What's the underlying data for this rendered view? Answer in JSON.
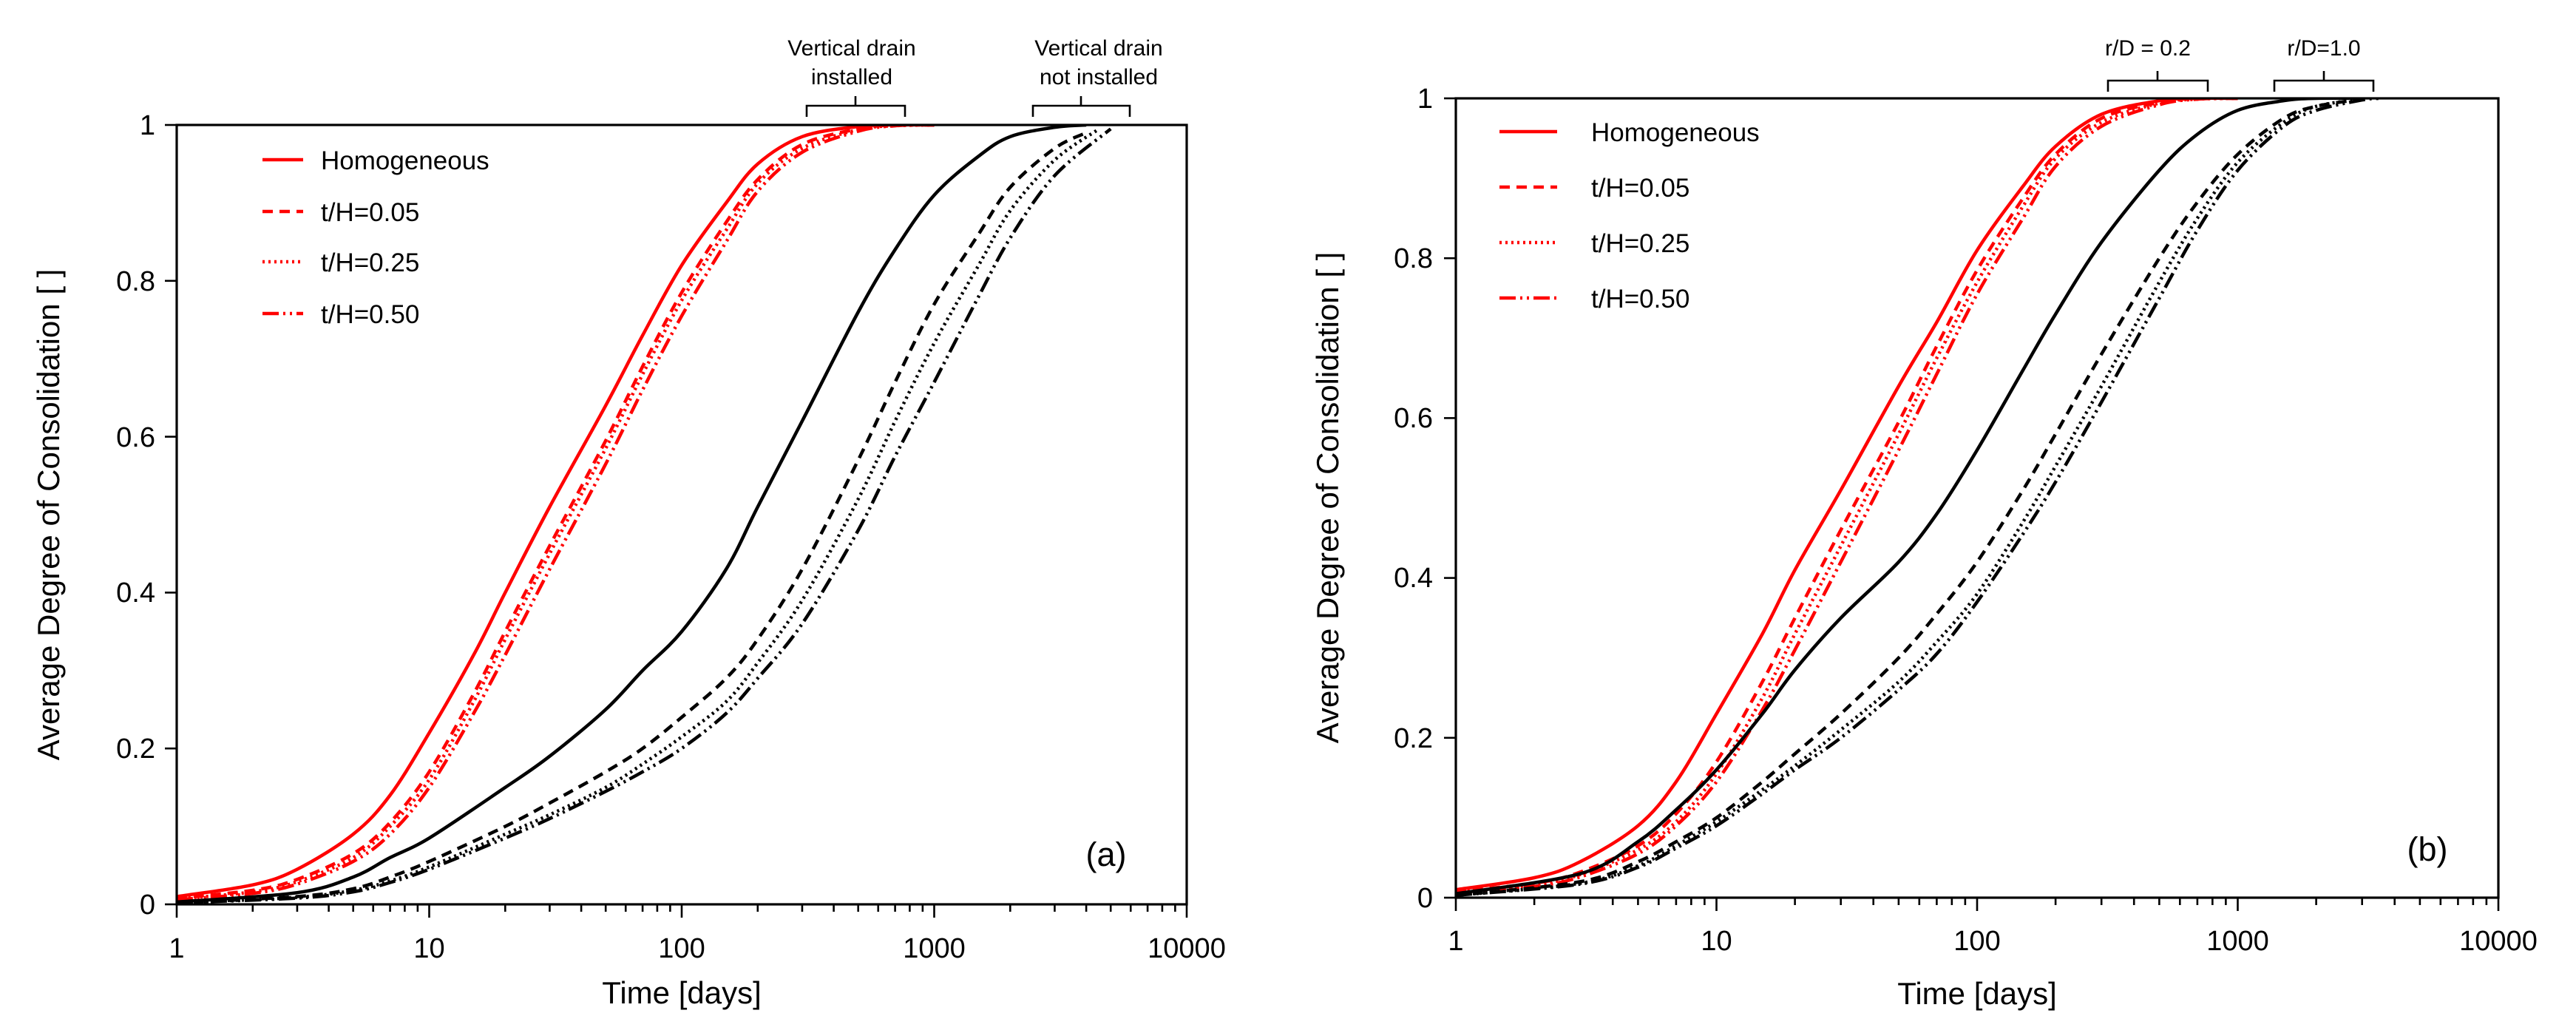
{
  "chart_data": [
    {
      "id": "a",
      "type": "line",
      "panel_label": "(a)",
      "xlabel": "Time [days]",
      "ylabel": "Average Degree of Consolidation [ ]",
      "xscale": "log",
      "xlim": [
        1,
        10000
      ],
      "ylim": [
        0,
        1
      ],
      "xticks": [
        1,
        10,
        100,
        1000,
        10000
      ],
      "xtick_labels": [
        "1",
        "10",
        "100",
        "1000",
        "10000"
      ],
      "yticks": [
        0,
        0.2,
        0.4,
        0.6,
        0.8,
        1
      ],
      "ytick_labels": [
        "0",
        "0.2",
        "0.4",
        "0.6",
        "0.8",
        "1"
      ],
      "legend_position": "top-left",
      "legend": [
        {
          "label": "Homogeneous",
          "color": "#ff0000",
          "dash": "solid"
        },
        {
          "label": "t/H=0.05",
          "color": "#ff0000",
          "dash": "dashed"
        },
        {
          "label": "t/H=0.25",
          "color": "#ff0000",
          "dash": "dotted"
        },
        {
          "label": "t/H=0.50",
          "color": "#ff0000",
          "dash": "dashdotdot"
        }
      ],
      "annotations": [
        {
          "lines": [
            "Vertical drain",
            "installed"
          ],
          "x_range": [
            320,
            780
          ]
        },
        {
          "lines": [
            "Vertical drain",
            "not installed"
          ],
          "x_range": [
            2500,
            6000
          ]
        }
      ],
      "series": [
        {
          "name": "Homogeneous (drain installed)",
          "color": "#ff0000",
          "dash": "solid",
          "x": [
            1,
            2,
            3,
            5,
            7,
            10,
            15,
            20,
            30,
            50,
            70,
            100,
            150,
            200,
            300,
            500,
            700,
            1000
          ],
          "y": [
            0.01,
            0.025,
            0.045,
            0.09,
            0.14,
            0.22,
            0.32,
            0.4,
            0.51,
            0.64,
            0.73,
            0.82,
            0.9,
            0.95,
            0.985,
            0.998,
            1.0,
            1.0
          ]
        },
        {
          "name": "t/H=0.05 (drain installed)",
          "color": "#ff0000",
          "dash": "dashed",
          "x": [
            1,
            2,
            3,
            5,
            7,
            10,
            15,
            20,
            30,
            50,
            70,
            100,
            150,
            200,
            300,
            500,
            700,
            1000
          ],
          "y": [
            0.008,
            0.018,
            0.032,
            0.065,
            0.105,
            0.17,
            0.27,
            0.35,
            0.46,
            0.595,
            0.69,
            0.785,
            0.875,
            0.93,
            0.975,
            0.995,
            1.0,
            1.0
          ]
        },
        {
          "name": "t/H=0.25 (drain installed)",
          "color": "#ff0000",
          "dash": "dotted",
          "x": [
            1,
            2,
            3,
            5,
            7,
            10,
            15,
            20,
            30,
            50,
            70,
            100,
            150,
            200,
            300,
            500,
            700,
            1000
          ],
          "y": [
            0.007,
            0.016,
            0.029,
            0.06,
            0.1,
            0.16,
            0.26,
            0.34,
            0.45,
            0.585,
            0.68,
            0.775,
            0.865,
            0.925,
            0.97,
            0.994,
            0.999,
            1.0
          ]
        },
        {
          "name": "t/H=0.50 (drain installed)",
          "color": "#ff0000",
          "dash": "dashdotdot",
          "x": [
            1,
            2,
            3,
            5,
            7,
            10,
            15,
            20,
            30,
            50,
            70,
            100,
            150,
            200,
            300,
            500,
            700,
            1000
          ],
          "y": [
            0.006,
            0.014,
            0.026,
            0.055,
            0.09,
            0.15,
            0.245,
            0.32,
            0.43,
            0.565,
            0.66,
            0.755,
            0.85,
            0.915,
            0.965,
            0.992,
            0.999,
            1.0
          ]
        },
        {
          "name": "Homogeneous (drain not installed)",
          "color": "#000000",
          "dash": "solid",
          "x": [
            1,
            3,
            5,
            7,
            10,
            20,
            30,
            50,
            70,
            100,
            150,
            200,
            300,
            500,
            700,
            1000,
            1500,
            2000,
            3000,
            4000
          ],
          "y": [
            0.003,
            0.015,
            0.035,
            0.06,
            0.085,
            0.15,
            0.19,
            0.25,
            0.3,
            0.35,
            0.43,
            0.51,
            0.62,
            0.76,
            0.84,
            0.91,
            0.96,
            0.985,
            0.997,
            1.0
          ]
        },
        {
          "name": "t/H=0.05 (drain not installed)",
          "color": "#000000",
          "dash": "dashed",
          "x": [
            1,
            3,
            5,
            7,
            10,
            20,
            30,
            50,
            70,
            100,
            150,
            200,
            300,
            500,
            700,
            1000,
            1500,
            2000,
            3000,
            4000
          ],
          "y": [
            0.002,
            0.01,
            0.02,
            0.035,
            0.055,
            0.1,
            0.13,
            0.17,
            0.2,
            0.24,
            0.29,
            0.34,
            0.43,
            0.57,
            0.67,
            0.77,
            0.86,
            0.92,
            0.97,
            0.99
          ]
        },
        {
          "name": "t/H=0.25 (drain not installed)",
          "color": "#000000",
          "dash": "dotted",
          "x": [
            1,
            3,
            5,
            7,
            10,
            20,
            30,
            50,
            70,
            100,
            150,
            200,
            300,
            500,
            700,
            1000,
            1500,
            2000,
            3000,
            4500
          ],
          "y": [
            0.002,
            0.009,
            0.018,
            0.03,
            0.048,
            0.09,
            0.115,
            0.15,
            0.18,
            0.215,
            0.26,
            0.31,
            0.39,
            0.52,
            0.62,
            0.72,
            0.82,
            0.89,
            0.955,
            0.995
          ]
        },
        {
          "name": "t/H=0.50 (drain not installed)",
          "color": "#000000",
          "dash": "dashdotdot",
          "x": [
            1,
            3,
            5,
            7,
            10,
            20,
            30,
            50,
            70,
            100,
            150,
            200,
            300,
            500,
            700,
            1000,
            1500,
            2000,
            3000,
            5000
          ],
          "y": [
            0.002,
            0.008,
            0.016,
            0.028,
            0.045,
            0.085,
            0.11,
            0.145,
            0.17,
            0.2,
            0.245,
            0.29,
            0.36,
            0.48,
            0.575,
            0.67,
            0.78,
            0.855,
            0.935,
            0.995
          ]
        }
      ]
    },
    {
      "id": "b",
      "type": "line",
      "panel_label": "(b)",
      "xlabel": "Time [days]",
      "ylabel": "Average Degree of Consolidation [ ]",
      "xscale": "log",
      "xlim": [
        1,
        10000
      ],
      "ylim": [
        0,
        1
      ],
      "xticks": [
        1,
        10,
        100,
        1000,
        10000
      ],
      "xtick_labels": [
        "1",
        "10",
        "100",
        "1000",
        "10000"
      ],
      "yticks": [
        0,
        0.2,
        0.4,
        0.6,
        0.8,
        1
      ],
      "ytick_labels": [
        "0",
        "0.2",
        "0.4",
        "0.6",
        "0.8",
        "1"
      ],
      "legend_position": "top-left",
      "legend": [
        {
          "label": "Homogeneous",
          "color": "#ff0000",
          "dash": "solid"
        },
        {
          "label": "t/H=0.05",
          "color": "#ff0000",
          "dash": "dashed"
        },
        {
          "label": "t/H=0.25",
          "color": "#ff0000",
          "dash": "dotted"
        },
        {
          "label": "t/H=0.50",
          "color": "#ff0000",
          "dash": "dashdotdot"
        }
      ],
      "annotations": [
        {
          "lines": [
            "r/D = 0.2"
          ],
          "x_range": [
            320,
            780
          ]
        },
        {
          "lines": [
            "r/D=1.0"
          ],
          "x_range": [
            1350,
            3300
          ]
        }
      ],
      "series": [
        {
          "name": "Homogeneous (r/D = 0.2)",
          "color": "#ff0000",
          "dash": "solid",
          "x": [
            1,
            2,
            3,
            5,
            7,
            10,
            15,
            20,
            30,
            50,
            70,
            100,
            150,
            200,
            300,
            500,
            700,
            1000
          ],
          "y": [
            0.01,
            0.025,
            0.045,
            0.09,
            0.145,
            0.23,
            0.33,
            0.41,
            0.51,
            0.64,
            0.72,
            0.81,
            0.89,
            0.94,
            0.98,
            0.997,
            1.0,
            1.0
          ]
        },
        {
          "name": "t/H=0.05 (r/D = 0.2)",
          "color": "#ff0000",
          "dash": "dashed",
          "x": [
            1,
            2,
            3,
            5,
            7,
            10,
            15,
            20,
            30,
            50,
            70,
            100,
            150,
            200,
            300,
            500,
            700,
            1000
          ],
          "y": [
            0.008,
            0.018,
            0.032,
            0.065,
            0.105,
            0.17,
            0.27,
            0.35,
            0.46,
            0.595,
            0.69,
            0.785,
            0.875,
            0.93,
            0.975,
            0.995,
            1.0,
            1.0
          ]
        },
        {
          "name": "t/H=0.25 (r/D = 0.2)",
          "color": "#ff0000",
          "dash": "dotted",
          "x": [
            1,
            2,
            3,
            5,
            7,
            10,
            15,
            20,
            30,
            50,
            70,
            100,
            150,
            200,
            300,
            500,
            700,
            1000
          ],
          "y": [
            0.007,
            0.016,
            0.029,
            0.06,
            0.095,
            0.155,
            0.25,
            0.33,
            0.44,
            0.58,
            0.675,
            0.77,
            0.865,
            0.925,
            0.97,
            0.994,
            0.999,
            1.0
          ]
        },
        {
          "name": "t/H=0.50 (r/D = 0.2)",
          "color": "#ff0000",
          "dash": "dashdotdot",
          "x": [
            1,
            2,
            3,
            5,
            7,
            10,
            15,
            20,
            30,
            50,
            70,
            100,
            150,
            200,
            300,
            500,
            700,
            1000
          ],
          "y": [
            0.006,
            0.014,
            0.026,
            0.055,
            0.09,
            0.145,
            0.235,
            0.31,
            0.42,
            0.56,
            0.655,
            0.755,
            0.85,
            0.915,
            0.965,
            0.992,
            0.999,
            1.0
          ]
        },
        {
          "name": "Homogeneous (r/D=1.0)",
          "color": "#000000",
          "dash": "solid",
          "x": [
            1,
            3,
            5,
            7,
            10,
            15,
            20,
            30,
            50,
            70,
            100,
            150,
            200,
            300,
            500,
            700,
            1000,
            1500,
            2000,
            3000
          ],
          "y": [
            0.005,
            0.03,
            0.07,
            0.11,
            0.16,
            0.23,
            0.285,
            0.35,
            0.42,
            0.48,
            0.56,
            0.66,
            0.73,
            0.82,
            0.91,
            0.955,
            0.985,
            0.997,
            1.0,
            1.0
          ]
        },
        {
          "name": "t/H=0.05 (r/D=1.0)",
          "color": "#000000",
          "dash": "dashed",
          "x": [
            1,
            3,
            5,
            7,
            10,
            15,
            20,
            30,
            50,
            70,
            100,
            150,
            200,
            300,
            500,
            700,
            1000,
            1500,
            2000,
            3000
          ],
          "y": [
            0.003,
            0.02,
            0.045,
            0.07,
            0.1,
            0.145,
            0.18,
            0.23,
            0.3,
            0.355,
            0.42,
            0.51,
            0.58,
            0.68,
            0.8,
            0.87,
            0.93,
            0.975,
            0.99,
            0.999
          ]
        },
        {
          "name": "t/H=0.25 (r/D=1.0)",
          "color": "#000000",
          "dash": "dotted",
          "x": [
            1,
            3,
            5,
            7,
            10,
            15,
            20,
            30,
            50,
            70,
            100,
            150,
            200,
            300,
            500,
            700,
            1000,
            1500,
            2000,
            3000
          ],
          "y": [
            0.003,
            0.018,
            0.04,
            0.065,
            0.095,
            0.135,
            0.165,
            0.21,
            0.27,
            0.32,
            0.38,
            0.47,
            0.54,
            0.64,
            0.77,
            0.85,
            0.92,
            0.97,
            0.99,
            0.999
          ]
        },
        {
          "name": "t/H=0.50 (r/D=1.0)",
          "color": "#000000",
          "dash": "dashdotdot",
          "x": [
            1,
            3,
            5,
            7,
            10,
            15,
            20,
            30,
            50,
            70,
            100,
            150,
            200,
            300,
            500,
            700,
            1000,
            1500,
            2000,
            3000,
            3500
          ],
          "y": [
            0.003,
            0.017,
            0.038,
            0.062,
            0.09,
            0.13,
            0.16,
            0.2,
            0.26,
            0.305,
            0.37,
            0.455,
            0.52,
            0.62,
            0.75,
            0.835,
            0.91,
            0.965,
            0.985,
            0.998,
            1.0
          ]
        }
      ]
    }
  ]
}
